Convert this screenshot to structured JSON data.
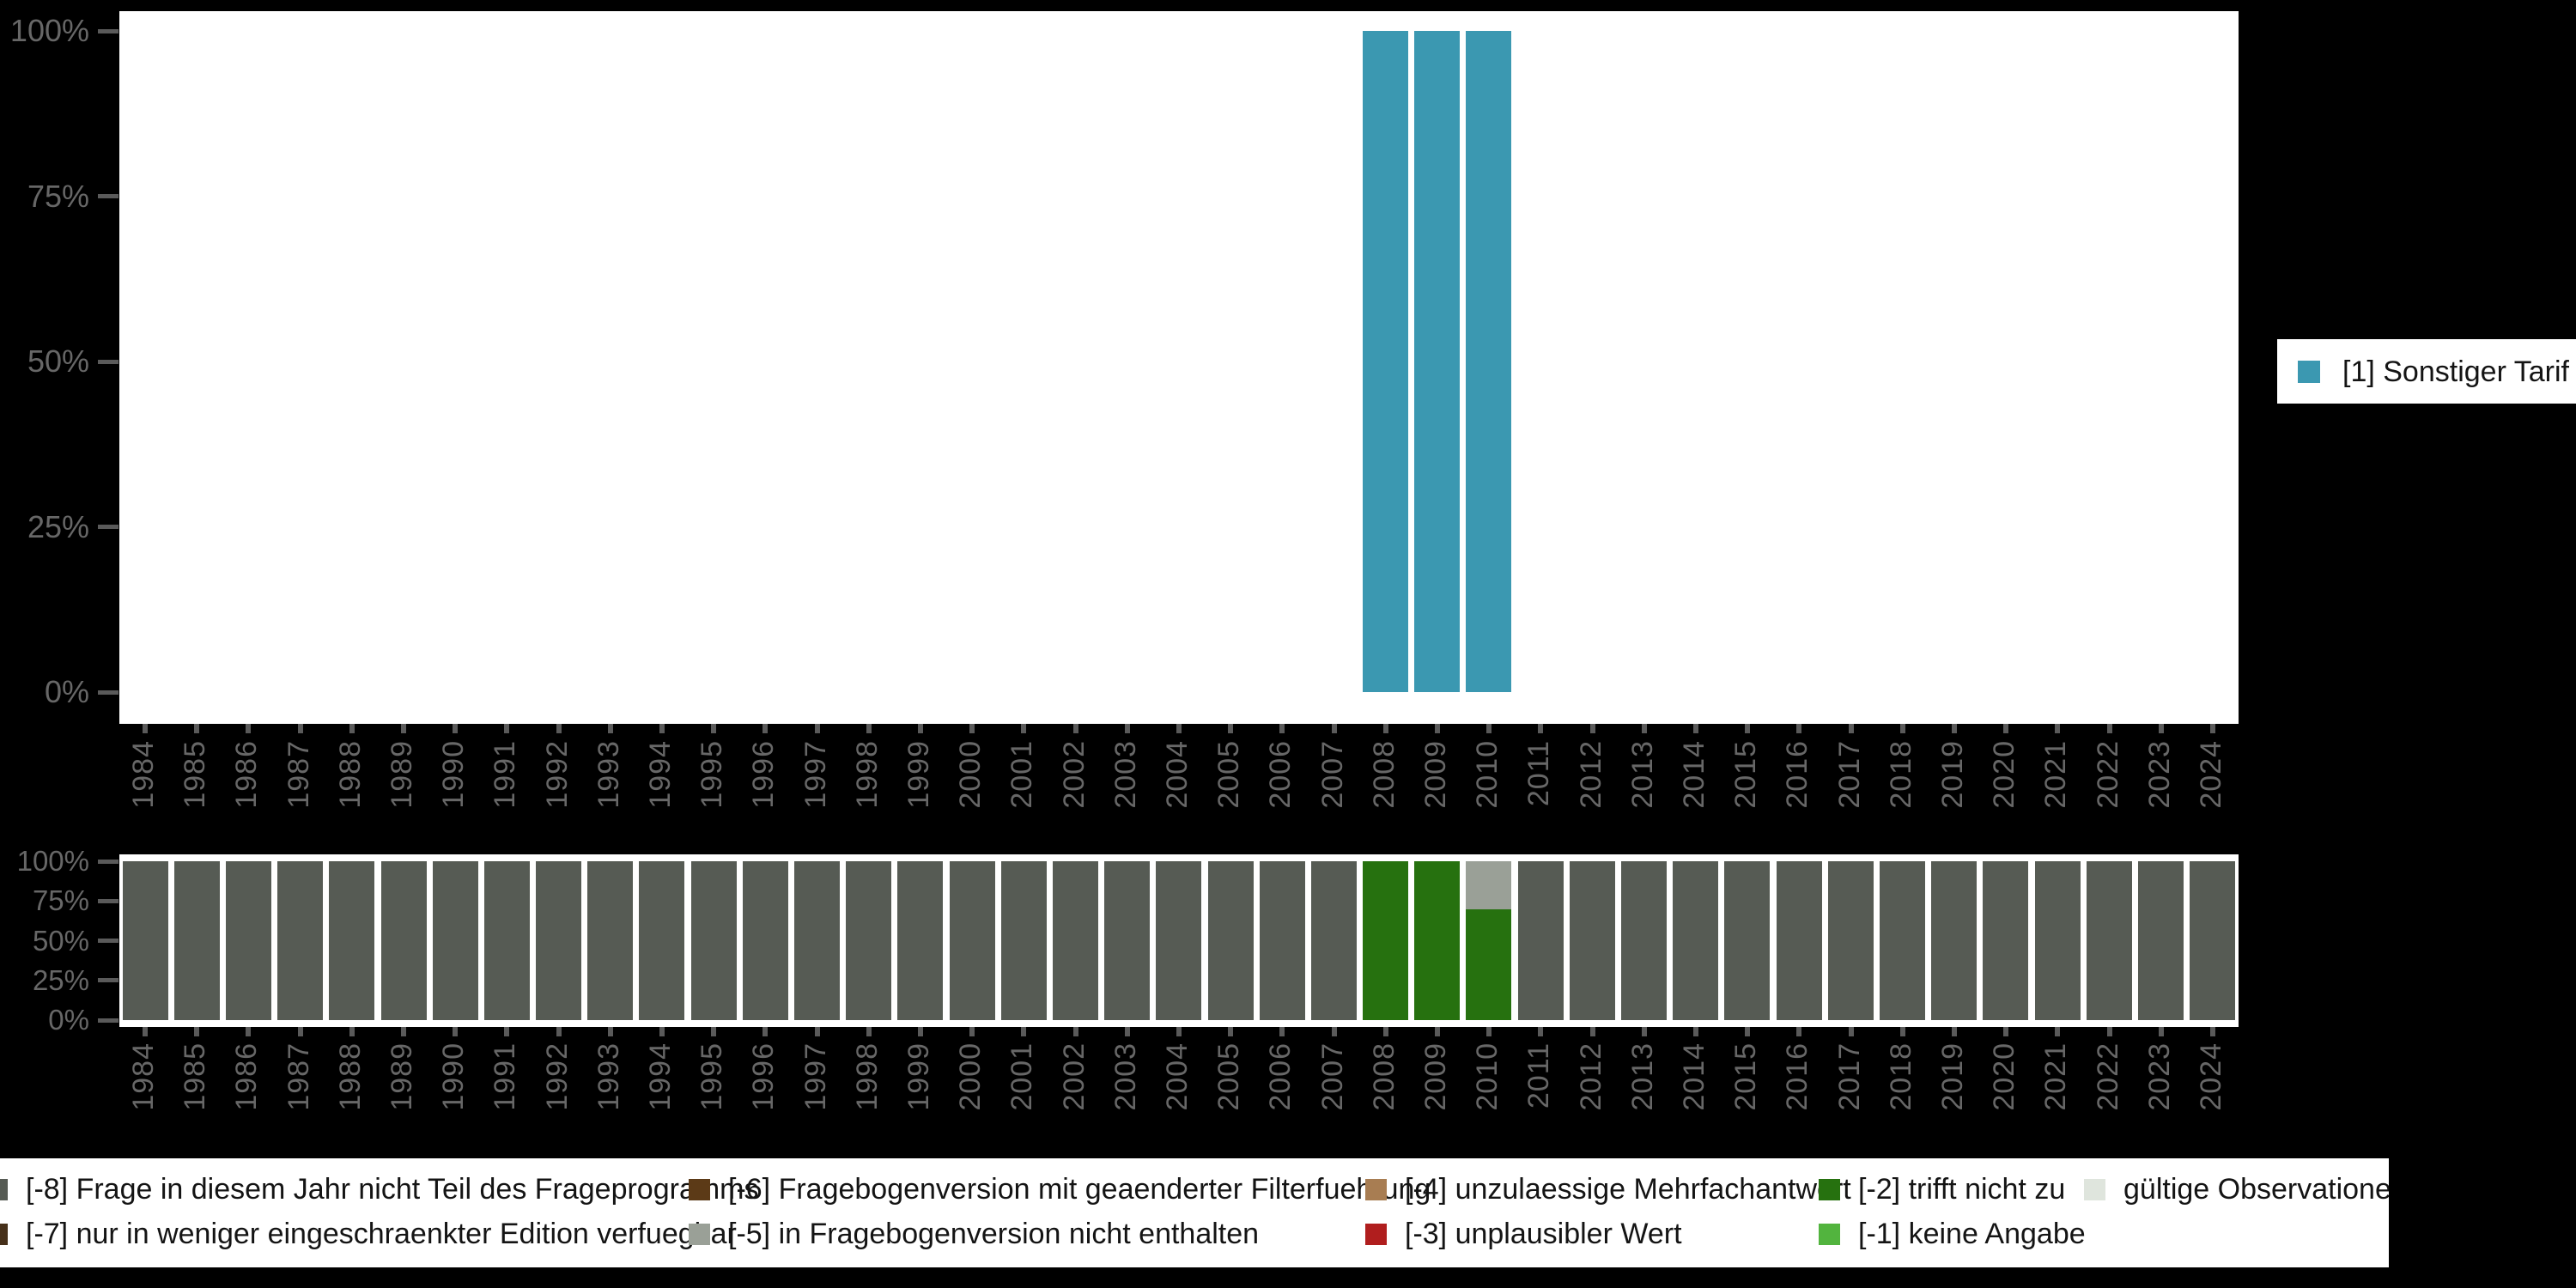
{
  "figure": {
    "background": "#000000",
    "plot_background": "#ffffff",
    "axis_text_color": "#676767",
    "tick_color": "#5a5a5a"
  },
  "chart_data": [
    {
      "id": "valid-values-chart",
      "type": "bar",
      "stacked": true,
      "title": "",
      "xlabel": "",
      "ylabel": "",
      "ylim": [
        0,
        100
      ],
      "unit": "percent",
      "grid": false,
      "legend_position": "right",
      "y_ticks": [
        "0%",
        "25%",
        "50%",
        "75%",
        "100%"
      ],
      "x": [
        1984,
        1985,
        1986,
        1987,
        1988,
        1989,
        1990,
        1991,
        1992,
        1993,
        1994,
        1995,
        1996,
        1997,
        1998,
        1999,
        2000,
        2001,
        2002,
        2003,
        2004,
        2005,
        2006,
        2007,
        2008,
        2009,
        2010,
        2011,
        2012,
        2013,
        2014,
        2015,
        2016,
        2017,
        2018,
        2019,
        2020,
        2021,
        2022,
        2023,
        2024
      ],
      "series": [
        {
          "name": "[1] Sonstiger Tarif",
          "color": "#3B98B1",
          "values": [
            0,
            0,
            0,
            0,
            0,
            0,
            0,
            0,
            0,
            0,
            0,
            0,
            0,
            0,
            0,
            0,
            0,
            0,
            0,
            0,
            0,
            0,
            0,
            0,
            100,
            100,
            100,
            0,
            0,
            0,
            0,
            0,
            0,
            0,
            0,
            0,
            0,
            0,
            0,
            0,
            0
          ]
        }
      ]
    },
    {
      "id": "missing-values-chart",
      "type": "bar",
      "stacked": true,
      "title": "",
      "xlabel": "",
      "ylabel": "",
      "ylim": [
        0,
        100
      ],
      "unit": "percent",
      "grid": false,
      "legend_position": "bottom",
      "y_ticks": [
        "0%",
        "25%",
        "50%",
        "75%",
        "100%"
      ],
      "x": [
        1984,
        1985,
        1986,
        1987,
        1988,
        1989,
        1990,
        1991,
        1992,
        1993,
        1994,
        1995,
        1996,
        1997,
        1998,
        1999,
        2000,
        2001,
        2002,
        2003,
        2004,
        2005,
        2006,
        2007,
        2008,
        2009,
        2010,
        2011,
        2012,
        2013,
        2014,
        2015,
        2016,
        2017,
        2018,
        2019,
        2020,
        2021,
        2022,
        2023,
        2024
      ],
      "series": [
        {
          "name": "[-8] Frage in diesem Jahr nicht Teil des Frageprogramms",
          "color": "#565B54",
          "values": [
            100,
            100,
            100,
            100,
            100,
            100,
            100,
            100,
            100,
            100,
            100,
            100,
            100,
            100,
            100,
            100,
            100,
            100,
            100,
            100,
            100,
            100,
            100,
            100,
            0,
            0,
            0,
            100,
            100,
            100,
            100,
            100,
            100,
            100,
            100,
            100,
            100,
            100,
            100,
            100,
            100
          ]
        },
        {
          "name": "[-2] trifft nicht zu",
          "color": "#26710F",
          "values": [
            0,
            0,
            0,
            0,
            0,
            0,
            0,
            0,
            0,
            0,
            0,
            0,
            0,
            0,
            0,
            0,
            0,
            0,
            0,
            0,
            0,
            0,
            0,
            0,
            100,
            100,
            70,
            0,
            0,
            0,
            0,
            0,
            0,
            0,
            0,
            0,
            0,
            0,
            0,
            0,
            0
          ]
        },
        {
          "name": "[-5] in Fragebogenversion nicht enthalten",
          "color": "#9AA097",
          "values": [
            0,
            0,
            0,
            0,
            0,
            0,
            0,
            0,
            0,
            0,
            0,
            0,
            0,
            0,
            0,
            0,
            0,
            0,
            0,
            0,
            0,
            0,
            0,
            0,
            0,
            0,
            30,
            0,
            0,
            0,
            0,
            0,
            0,
            0,
            0,
            0,
            0,
            0,
            0,
            0,
            0
          ]
        }
      ]
    }
  ],
  "legend_top": {
    "items": [
      {
        "label": "[1] Sonstiger Tarif",
        "color": "#3B98B1"
      }
    ]
  },
  "legend_missing": {
    "items": [
      {
        "label": "[-8] Frage in diesem Jahr nicht Teil des Frageprogramms",
        "color": "#565B54",
        "col": 0,
        "row": 0
      },
      {
        "label": "[-7] nur in weniger eingeschraenkter Edition verfuegbar",
        "color": "#46301A",
        "col": 0,
        "row": 1
      },
      {
        "label": "[-6] Fragebogenversion mit geaenderter Filterfuehrung",
        "color": "#5C3A17",
        "col": 1,
        "row": 0
      },
      {
        "label": "[-5] in Fragebogenversion nicht enthalten",
        "color": "#9AA097",
        "col": 1,
        "row": 1
      },
      {
        "label": "[-4] unzulaessige Mehrfachantwort",
        "color": "#A87D52",
        "col": 2,
        "row": 0
      },
      {
        "label": "[-3] unplausibler Wert",
        "color": "#B01E1E",
        "col": 2,
        "row": 1
      },
      {
        "label": "[-2] trifft nicht zu",
        "color": "#26710F",
        "col": 3,
        "row": 0
      },
      {
        "label": "[-1] keine Angabe",
        "color": "#52B43E",
        "col": 3,
        "row": 1
      },
      {
        "label": "gültige Observationen",
        "color": "#DFE5DD",
        "col": 4,
        "row": 0
      }
    ]
  }
}
